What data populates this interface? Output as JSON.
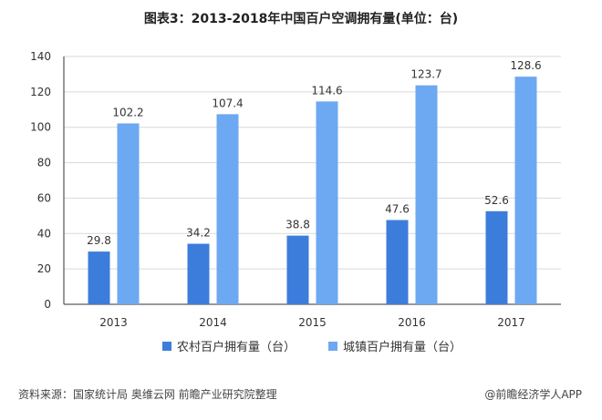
{
  "title": "图表3：2013-2018年中国百户空调拥有量(单位：台)",
  "source": "资料来源：国家统计局 奥维云网 前瞻产业研究院整理",
  "credit": "@前瞻经济学人APP",
  "colors": {
    "rural": "#3C7DDB",
    "urban": "#6DA8F2",
    "grid": "#d9d9d9",
    "axis": "#333333"
  },
  "chart_data": {
    "type": "bar",
    "categories": [
      "2013",
      "2014",
      "2015",
      "2016",
      "2017"
    ],
    "series": [
      {
        "name": "农村百户拥有量（台）",
        "values": [
          29.8,
          34.2,
          38.8,
          47.6,
          52.6
        ]
      },
      {
        "name": "城镇百户拥有量（台）",
        "values": [
          102.2,
          107.4,
          114.6,
          123.7,
          128.6
        ]
      }
    ],
    "ylim": [
      0,
      140
    ],
    "yticks": [
      0,
      20,
      40,
      60,
      80,
      100,
      120,
      140
    ],
    "grid": true,
    "legend_position": "bottom"
  }
}
